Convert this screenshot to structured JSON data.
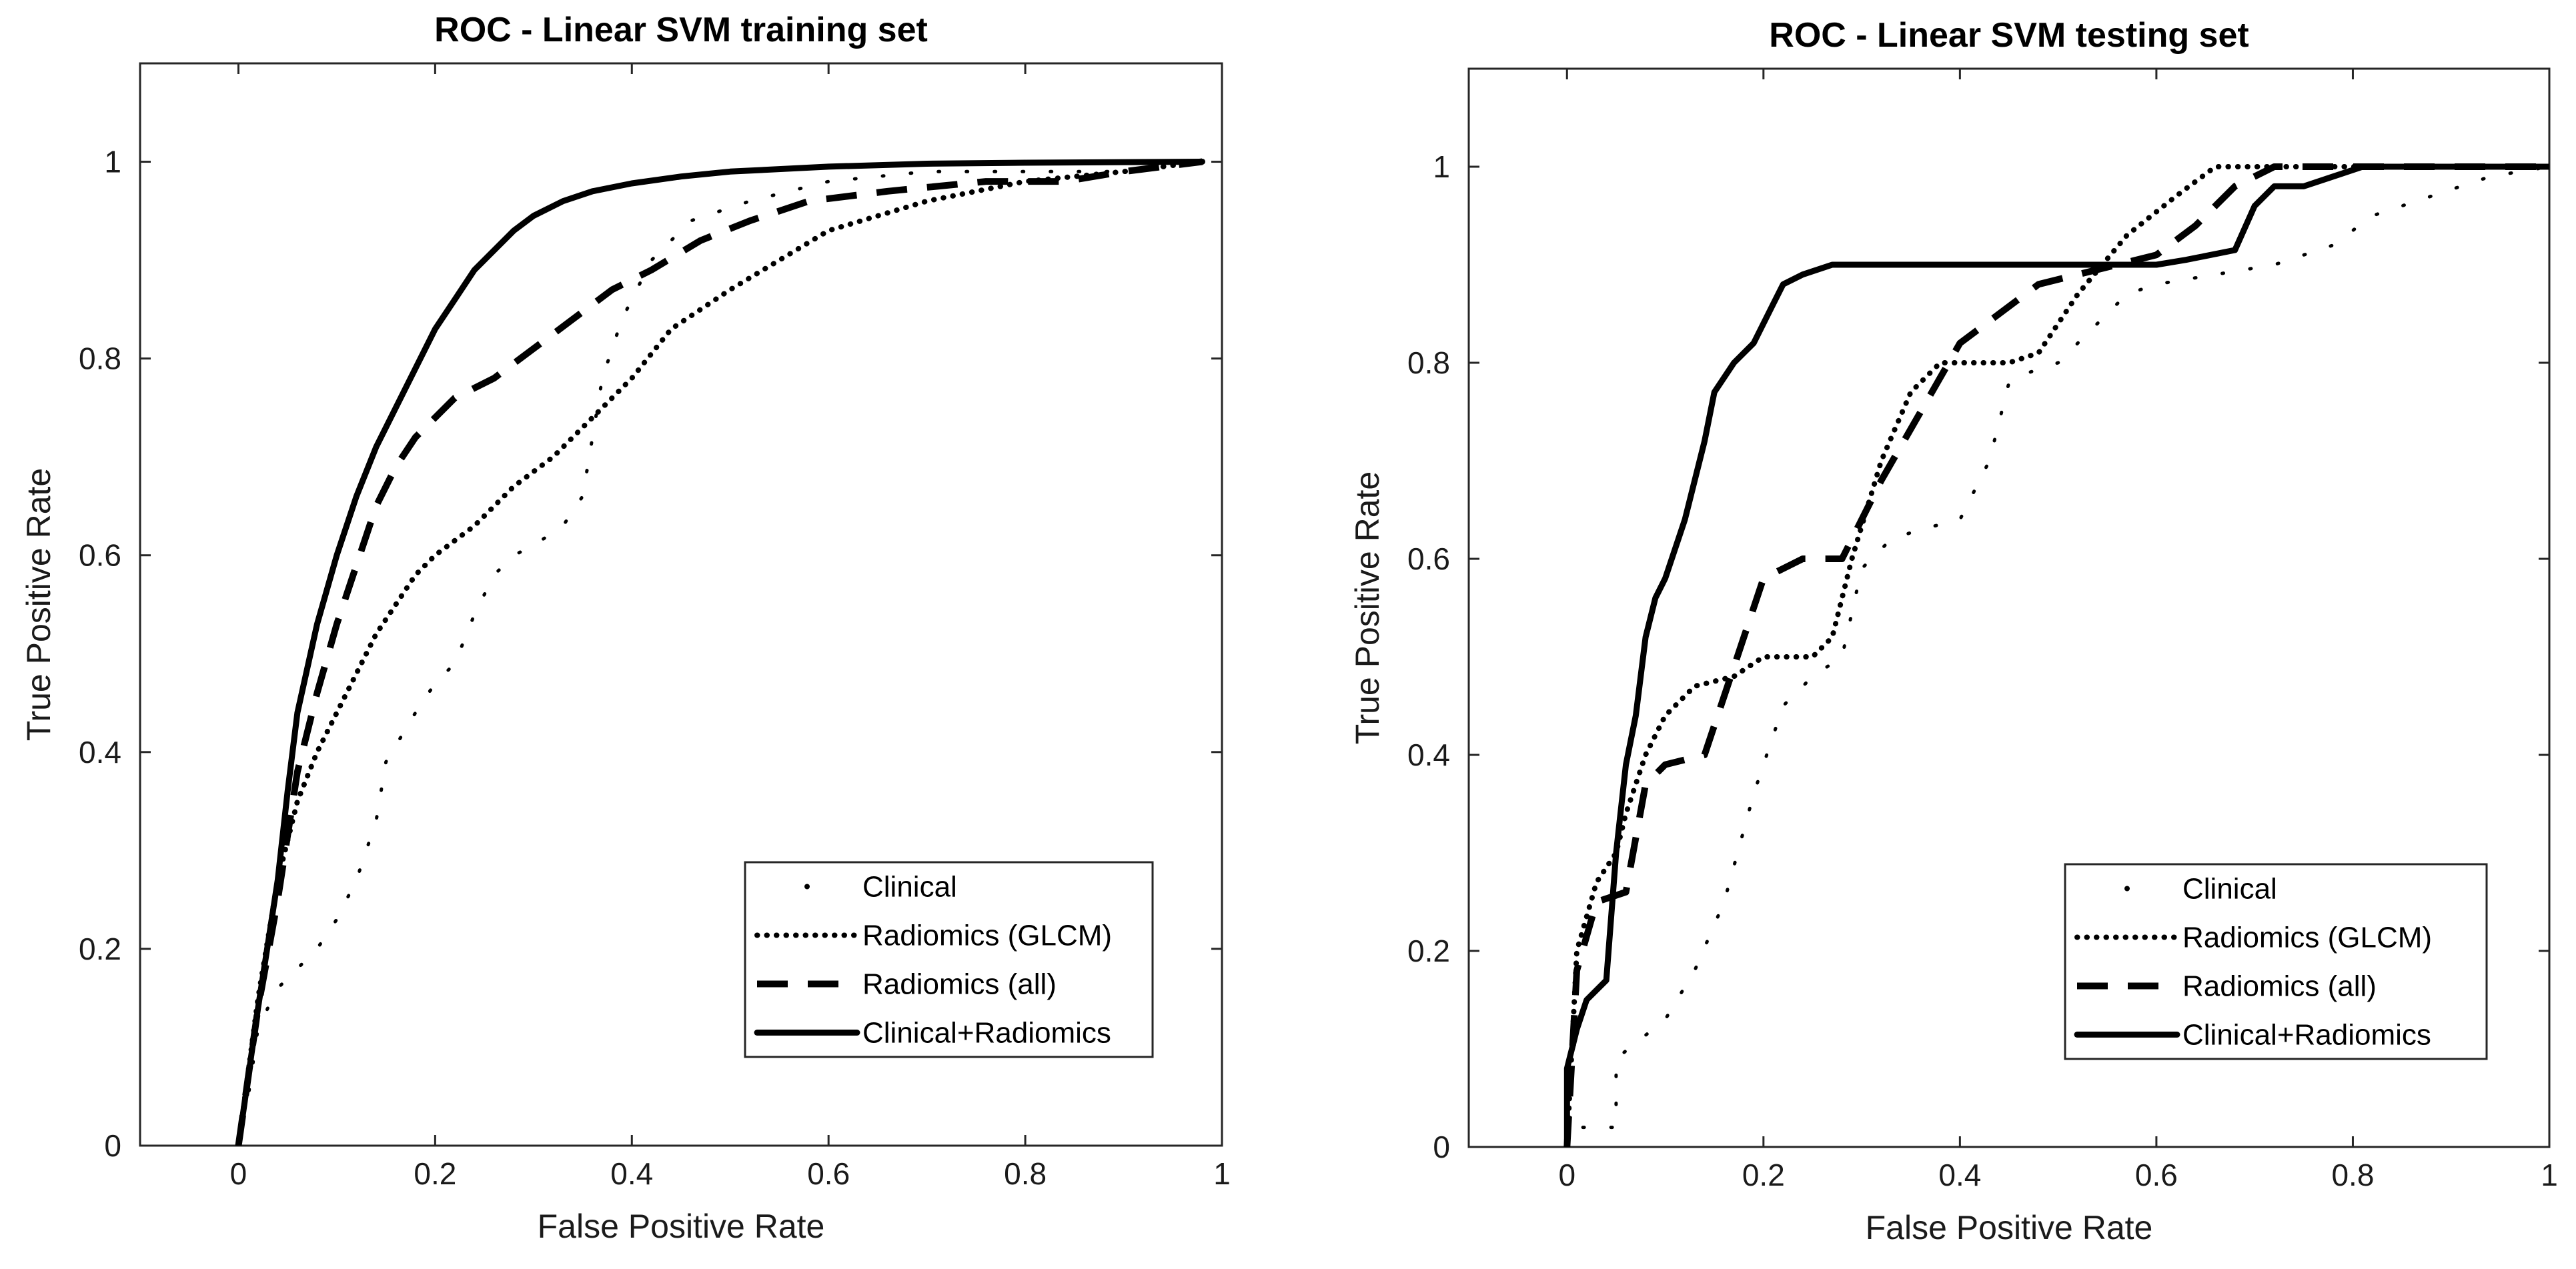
{
  "chart_data": [
    {
      "type": "line",
      "title": "ROC - Linear SVM training set",
      "xlabel": "False Positive Rate",
      "ylabel": "True Positive Rate",
      "xlim": [
        -0.1,
        1
      ],
      "ylim": [
        0,
        1.1
      ],
      "xticks": [
        "0",
        "0.2",
        "0.4",
        "0.6",
        "0.8",
        "1"
      ],
      "yticks": [
        "0",
        "0.2",
        "0.4",
        "0.6",
        "0.8",
        "1"
      ],
      "grid": false,
      "legend_position": "bottom-right",
      "series": [
        {
          "name": "Clinical",
          "style": "dotted-sparse",
          "points": [
            [
              0,
              0
            ],
            [
              0.01,
              0.05
            ],
            [
              0.02,
              0.12
            ],
            [
              0.04,
              0.16
            ],
            [
              0.06,
              0.18
            ],
            [
              0.08,
              0.2
            ],
            [
              0.1,
              0.23
            ],
            [
              0.12,
              0.27
            ],
            [
              0.14,
              0.33
            ],
            [
              0.15,
              0.39
            ],
            [
              0.18,
              0.44
            ],
            [
              0.2,
              0.47
            ],
            [
              0.22,
              0.49
            ],
            [
              0.24,
              0.54
            ],
            [
              0.26,
              0.58
            ],
            [
              0.28,
              0.6
            ],
            [
              0.3,
              0.61
            ],
            [
              0.33,
              0.63
            ],
            [
              0.35,
              0.66
            ],
            [
              0.36,
              0.72
            ],
            [
              0.37,
              0.78
            ],
            [
              0.39,
              0.84
            ],
            [
              0.42,
              0.9
            ],
            [
              0.46,
              0.94
            ],
            [
              0.52,
              0.96
            ],
            [
              0.6,
              0.98
            ],
            [
              0.7,
              0.99
            ],
            [
              0.8,
              0.99
            ],
            [
              0.9,
              0.99
            ],
            [
              0.98,
              1
            ]
          ]
        },
        {
          "name": "Radiomics (GLCM)",
          "style": "dotted",
          "points": [
            [
              0,
              0
            ],
            [
              0.02,
              0.15
            ],
            [
              0.04,
              0.27
            ],
            [
              0.06,
              0.35
            ],
            [
              0.08,
              0.4
            ],
            [
              0.1,
              0.44
            ],
            [
              0.12,
              0.48
            ],
            [
              0.14,
              0.52
            ],
            [
              0.16,
              0.55
            ],
            [
              0.18,
              0.58
            ],
            [
              0.2,
              0.6
            ],
            [
              0.24,
              0.63
            ],
            [
              0.28,
              0.67
            ],
            [
              0.32,
              0.7
            ],
            [
              0.36,
              0.74
            ],
            [
              0.4,
              0.78
            ],
            [
              0.44,
              0.83
            ],
            [
              0.5,
              0.87
            ],
            [
              0.55,
              0.9
            ],
            [
              0.6,
              0.93
            ],
            [
              0.7,
              0.96
            ],
            [
              0.8,
              0.98
            ],
            [
              0.9,
              0.99
            ],
            [
              0.98,
              1
            ]
          ]
        },
        {
          "name": "Radiomics (all)",
          "style": "dashed",
          "points": [
            [
              0,
              0
            ],
            [
              0.02,
              0.14
            ],
            [
              0.04,
              0.25
            ],
            [
              0.06,
              0.38
            ],
            [
              0.08,
              0.46
            ],
            [
              0.1,
              0.53
            ],
            [
              0.12,
              0.59
            ],
            [
              0.14,
              0.65
            ],
            [
              0.16,
              0.69
            ],
            [
              0.18,
              0.72
            ],
            [
              0.2,
              0.74
            ],
            [
              0.22,
              0.76
            ],
            [
              0.26,
              0.78
            ],
            [
              0.3,
              0.81
            ],
            [
              0.34,
              0.84
            ],
            [
              0.38,
              0.87
            ],
            [
              0.42,
              0.89
            ],
            [
              0.47,
              0.92
            ],
            [
              0.52,
              0.94
            ],
            [
              0.58,
              0.96
            ],
            [
              0.66,
              0.97
            ],
            [
              0.76,
              0.98
            ],
            [
              0.84,
              0.98
            ],
            [
              0.9,
              0.99
            ],
            [
              0.98,
              1
            ]
          ]
        },
        {
          "name": "Clinical+Radiomics",
          "style": "solid",
          "points": [
            [
              0,
              0
            ],
            [
              0.02,
              0.14
            ],
            [
              0.04,
              0.27
            ],
            [
              0.05,
              0.36
            ],
            [
              0.06,
              0.44
            ],
            [
              0.08,
              0.53
            ],
            [
              0.1,
              0.6
            ],
            [
              0.12,
              0.66
            ],
            [
              0.14,
              0.71
            ],
            [
              0.16,
              0.75
            ],
            [
              0.18,
              0.79
            ],
            [
              0.2,
              0.83
            ],
            [
              0.22,
              0.86
            ],
            [
              0.24,
              0.89
            ],
            [
              0.26,
              0.91
            ],
            [
              0.28,
              0.93
            ],
            [
              0.3,
              0.945
            ],
            [
              0.33,
              0.96
            ],
            [
              0.36,
              0.97
            ],
            [
              0.4,
              0.978
            ],
            [
              0.45,
              0.985
            ],
            [
              0.5,
              0.99
            ],
            [
              0.6,
              0.995
            ],
            [
              0.7,
              0.998
            ],
            [
              0.8,
              0.999
            ],
            [
              0.98,
              1
            ]
          ]
        }
      ]
    },
    {
      "type": "line",
      "title": "ROC - Linear SVM testing set",
      "xlabel": "False Positive Rate",
      "ylabel": "True Positive Rate",
      "xlim": [
        -0.1,
        1
      ],
      "ylim": [
        0,
        1.1
      ],
      "xticks": [
        "0",
        "0.2",
        "0.4",
        "0.6",
        "0.8",
        "1"
      ],
      "yticks": [
        "0",
        "0.2",
        "0.4",
        "0.6",
        "0.8",
        "1"
      ],
      "grid": false,
      "legend_position": "bottom-right",
      "series": [
        {
          "name": "Clinical",
          "style": "dotted-sparse",
          "points": [
            [
              0,
              0
            ],
            [
              0.01,
              0.02
            ],
            [
              0.05,
              0.02
            ],
            [
              0.05,
              0.09
            ],
            [
              0.1,
              0.13
            ],
            [
              0.13,
              0.18
            ],
            [
              0.16,
              0.25
            ],
            [
              0.19,
              0.36
            ],
            [
              0.22,
              0.45
            ],
            [
              0.25,
              0.48
            ],
            [
              0.28,
              0.5
            ],
            [
              0.3,
              0.59
            ],
            [
              0.33,
              0.62
            ],
            [
              0.36,
              0.63
            ],
            [
              0.4,
              0.64
            ],
            [
              0.43,
              0.7
            ],
            [
              0.45,
              0.78
            ],
            [
              0.47,
              0.79
            ],
            [
              0.5,
              0.8
            ],
            [
              0.54,
              0.84
            ],
            [
              0.57,
              0.87
            ],
            [
              0.6,
              0.88
            ],
            [
              0.66,
              0.89
            ],
            [
              0.72,
              0.9
            ],
            [
              0.78,
              0.92
            ],
            [
              0.82,
              0.95
            ],
            [
              0.88,
              0.97
            ],
            [
              0.94,
              0.99
            ],
            [
              1,
              1
            ]
          ]
        },
        {
          "name": "Radiomics (GLCM)",
          "style": "dotted",
          "points": [
            [
              0,
              0
            ],
            [
              0.01,
              0.2
            ],
            [
              0.03,
              0.27
            ],
            [
              0.05,
              0.3
            ],
            [
              0.06,
              0.34
            ],
            [
              0.08,
              0.4
            ],
            [
              0.1,
              0.44
            ],
            [
              0.13,
              0.47
            ],
            [
              0.17,
              0.48
            ],
            [
              0.2,
              0.5
            ],
            [
              0.25,
              0.5
            ],
            [
              0.27,
              0.52
            ],
            [
              0.29,
              0.6
            ],
            [
              0.32,
              0.7
            ],
            [
              0.35,
              0.77
            ],
            [
              0.38,
              0.8
            ],
            [
              0.45,
              0.8
            ],
            [
              0.48,
              0.81
            ],
            [
              0.52,
              0.87
            ],
            [
              0.57,
              0.93
            ],
            [
              0.62,
              0.97
            ],
            [
              0.66,
              1
            ],
            [
              0.7,
              1
            ],
            [
              1,
              1
            ]
          ]
        },
        {
          "name": "Radiomics (all)",
          "style": "dashed",
          "points": [
            [
              0,
              0
            ],
            [
              0.01,
              0.18
            ],
            [
              0.03,
              0.25
            ],
            [
              0.06,
              0.26
            ],
            [
              0.08,
              0.37
            ],
            [
              0.1,
              0.39
            ],
            [
              0.14,
              0.4
            ],
            [
              0.18,
              0.52
            ],
            [
              0.2,
              0.58
            ],
            [
              0.24,
              0.6
            ],
            [
              0.28,
              0.6
            ],
            [
              0.32,
              0.68
            ],
            [
              0.36,
              0.75
            ],
            [
              0.4,
              0.82
            ],
            [
              0.44,
              0.85
            ],
            [
              0.48,
              0.88
            ],
            [
              0.52,
              0.89
            ],
            [
              0.56,
              0.9
            ],
            [
              0.6,
              0.91
            ],
            [
              0.64,
              0.94
            ],
            [
              0.68,
              0.98
            ],
            [
              0.72,
              1
            ],
            [
              1,
              1
            ]
          ]
        },
        {
          "name": "Clinical+Radiomics",
          "style": "solid",
          "points": [
            [
              0,
              0
            ],
            [
              0,
              0.08
            ],
            [
              0.01,
              0.12
            ],
            [
              0.02,
              0.15
            ],
            [
              0.04,
              0.17
            ],
            [
              0.05,
              0.3
            ],
            [
              0.06,
              0.39
            ],
            [
              0.07,
              0.44
            ],
            [
              0.08,
              0.52
            ],
            [
              0.09,
              0.56
            ],
            [
              0.1,
              0.58
            ],
            [
              0.12,
              0.64
            ],
            [
              0.14,
              0.72
            ],
            [
              0.15,
              0.77
            ],
            [
              0.17,
              0.8
            ],
            [
              0.19,
              0.82
            ],
            [
              0.21,
              0.86
            ],
            [
              0.22,
              0.88
            ],
            [
              0.24,
              0.89
            ],
            [
              0.27,
              0.9
            ],
            [
              0.3,
              0.9
            ],
            [
              0.6,
              0.9
            ],
            [
              0.63,
              0.905
            ],
            [
              0.68,
              0.915
            ],
            [
              0.7,
              0.96
            ],
            [
              0.72,
              0.98
            ],
            [
              0.75,
              0.98
            ],
            [
              0.78,
              0.99
            ],
            [
              0.81,
              1
            ],
            [
              1,
              1
            ]
          ]
        }
      ]
    }
  ]
}
